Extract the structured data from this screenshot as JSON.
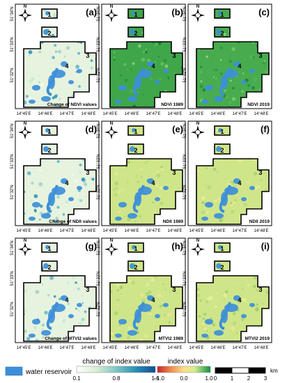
{
  "panels": [
    {
      "letter": "(a)",
      "caption": "Change of NDVI values",
      "scheme": "change"
    },
    {
      "letter": "(b)",
      "caption": "NDVI 1989",
      "scheme": "ndvi89"
    },
    {
      "letter": "(c)",
      "caption": "NDVI 2019",
      "scheme": "ndvi19"
    },
    {
      "letter": "(d)",
      "caption": "Change of NDII values",
      "scheme": "change"
    },
    {
      "letter": "(e)",
      "caption": "NDII 1989",
      "scheme": "yg"
    },
    {
      "letter": "(f)",
      "caption": "NDII 2019",
      "scheme": "yg"
    },
    {
      "letter": "(g)",
      "caption": "Change of MTVI2 values",
      "scheme": "change"
    },
    {
      "letter": "(h)",
      "caption": "MTVI2 1989",
      "scheme": "yg"
    },
    {
      "letter": "(i)",
      "caption": "MTVI2 2019",
      "scheme": "yg"
    }
  ],
  "area_labels": [
    "1",
    "2",
    "3",
    "4"
  ],
  "x_ticks": [
    "14°45'E",
    "14°46'E",
    "14°47'E",
    "14°48'E"
  ],
  "y_ticks": [
    "51°34'N",
    "51°33'N",
    "51°32'N"
  ],
  "north_arrow": "N",
  "legend": {
    "water_label": "water reservoir",
    "change_title": "change of index value",
    "change_ticks": [
      "0.1",
      "0.8",
      "1.6"
    ],
    "index_title": "index value",
    "index_ticks": [
      "−1.0",
      "0.0",
      "1.0"
    ],
    "scale_ticks": [
      "0",
      "1",
      "2",
      "3"
    ],
    "scale_unit": "km"
  },
  "colors": {
    "water": "#3d8fd8",
    "change_ramp": [
      "#ffffff",
      "#d9efd0",
      "#7fc7c4",
      "#2a8fb5",
      "#0a4f93"
    ],
    "index_ramp": [
      "#c8212a",
      "#f08a4b",
      "#fce08a",
      "#d8ee8f",
      "#6fc06a",
      "#138f3f"
    ]
  }
}
